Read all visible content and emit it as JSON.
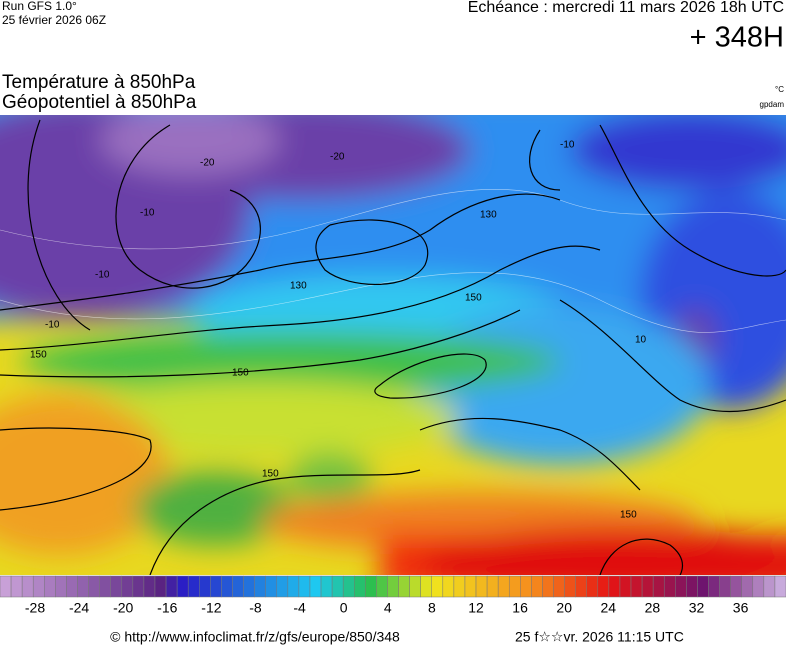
{
  "header": {
    "run": "Run GFS 1.0°",
    "run_date": "25 février 2026 06Z",
    "forecast_time": "Echéance : mercredi 11 mars 2026 18h UTC",
    "lead": "+ 348H",
    "title_line1": "Température à 850hPa",
    "title_line2": "Géopotentiel à 850hPa",
    "unit_temp": "°C",
    "unit_geo": "gpdam"
  },
  "map": {
    "contour_labels": [
      "-20",
      "-20",
      "-10",
      "-10",
      "-10",
      "10",
      "130",
      "130",
      "150",
      "150",
      "150",
      "150",
      "150",
      "-10"
    ]
  },
  "legend": {
    "ticks": [
      "-28",
      "-24",
      "-20",
      "-16",
      "-12",
      "-8",
      "-4",
      "0",
      "4",
      "8",
      "12",
      "16",
      "20",
      "24",
      "28",
      "32",
      "36"
    ]
  },
  "footer": {
    "source": "© http://www.infoclimat.fr/z/gfs/europe/850/348",
    "timestamp": "25 f☆☆vr. 2026 11:15 UTC"
  }
}
